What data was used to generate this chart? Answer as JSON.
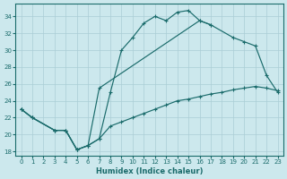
{
  "bg_color": "#cce8ed",
  "line_color": "#1a6b6b",
  "grid_color": "#aacdd5",
  "xlabel": "Humidex (Indice chaleur)",
  "xlim": [
    -0.5,
    23.5
  ],
  "ylim": [
    17.5,
    35.5
  ],
  "xticks": [
    0,
    1,
    2,
    3,
    4,
    5,
    6,
    7,
    8,
    9,
    10,
    11,
    12,
    13,
    14,
    15,
    16,
    17,
    18,
    19,
    20,
    21,
    22,
    23
  ],
  "yticks": [
    18,
    20,
    22,
    24,
    26,
    28,
    30,
    32,
    34
  ],
  "curve1_x": [
    0,
    1,
    3,
    4,
    5,
    6,
    7,
    8,
    9,
    10,
    11,
    12,
    13,
    14,
    15,
    16,
    17
  ],
  "curve1_y": [
    23.0,
    22.0,
    20.5,
    20.5,
    18.2,
    18.7,
    19.5,
    25.0,
    30.0,
    31.5,
    33.2,
    34.0,
    33.5,
    34.5,
    34.7,
    33.5,
    33.0
  ],
  "curve2_x": [
    0,
    1,
    3,
    4,
    5,
    6,
    7,
    16,
    17,
    19,
    20,
    21,
    22,
    23
  ],
  "curve2_y": [
    23.0,
    22.0,
    20.5,
    20.5,
    18.2,
    18.7,
    25.5,
    33.5,
    33.0,
    31.5,
    31.0,
    30.5,
    27.0,
    25.0
  ],
  "curve3_x": [
    0,
    1,
    3,
    4,
    5,
    6,
    7,
    8,
    9,
    10,
    11,
    12,
    13,
    14,
    15,
    16,
    17,
    18,
    19,
    20,
    21,
    22,
    23
  ],
  "curve3_y": [
    23.0,
    22.0,
    20.5,
    20.5,
    18.2,
    18.7,
    19.5,
    21.0,
    21.5,
    22.0,
    22.5,
    23.0,
    23.5,
    24.0,
    24.2,
    24.5,
    24.8,
    25.0,
    25.3,
    25.5,
    25.7,
    25.5,
    25.2
  ]
}
